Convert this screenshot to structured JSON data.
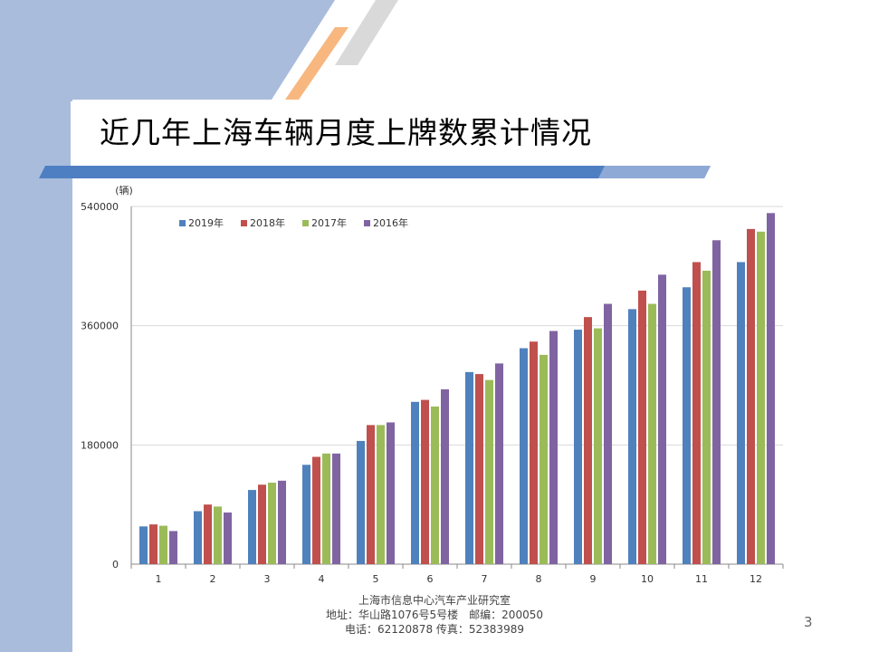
{
  "title": "近几年上海车辆月度上牌数累计情况",
  "page_number": "3",
  "footer": {
    "org": "上海市信息中心汽车产业研究室",
    "address": "地址：华山路1076号5号楼　邮编：200050",
    "contact": "电话：62120878  传真：52383989"
  },
  "colors": {
    "sidebar": "#a9bcdc",
    "header_bar": "#4f7fc3",
    "accent_orange": "#f7b77f"
  },
  "chart_data": {
    "type": "bar",
    "ylabel": "(辆)",
    "ylim": [
      0,
      540000
    ],
    "yticks": [
      0,
      180000,
      360000,
      540000
    ],
    "ytick_labels": [
      "0",
      "180000",
      "360000",
      "540000"
    ],
    "grid": true,
    "legend_placement": "top-left",
    "categories": [
      "1",
      "2",
      "3",
      "4",
      "5",
      "6",
      "7",
      "8",
      "9",
      "10",
      "11",
      "12"
    ],
    "series": [
      {
        "name": "2019年",
        "color": "#4f81bd",
        "values": [
          57000,
          80000,
          112000,
          150000,
          186000,
          245000,
          290000,
          326000,
          354000,
          385000,
          418000,
          456000
        ]
      },
      {
        "name": "2018年",
        "color": "#c0504d",
        "values": [
          60000,
          90000,
          120000,
          162000,
          210000,
          248000,
          287000,
          336000,
          373000,
          413000,
          456000,
          506000
        ]
      },
      {
        "name": "2017年",
        "color": "#9bbb59",
        "values": [
          58000,
          87000,
          123000,
          167000,
          210000,
          238000,
          278000,
          316000,
          356000,
          393000,
          443000,
          502000
        ]
      },
      {
        "name": "2016年",
        "color": "#8064a2",
        "values": [
          50000,
          78000,
          126000,
          167000,
          214000,
          264000,
          303000,
          352000,
          393000,
          437000,
          489000,
          530000
        ]
      }
    ]
  }
}
